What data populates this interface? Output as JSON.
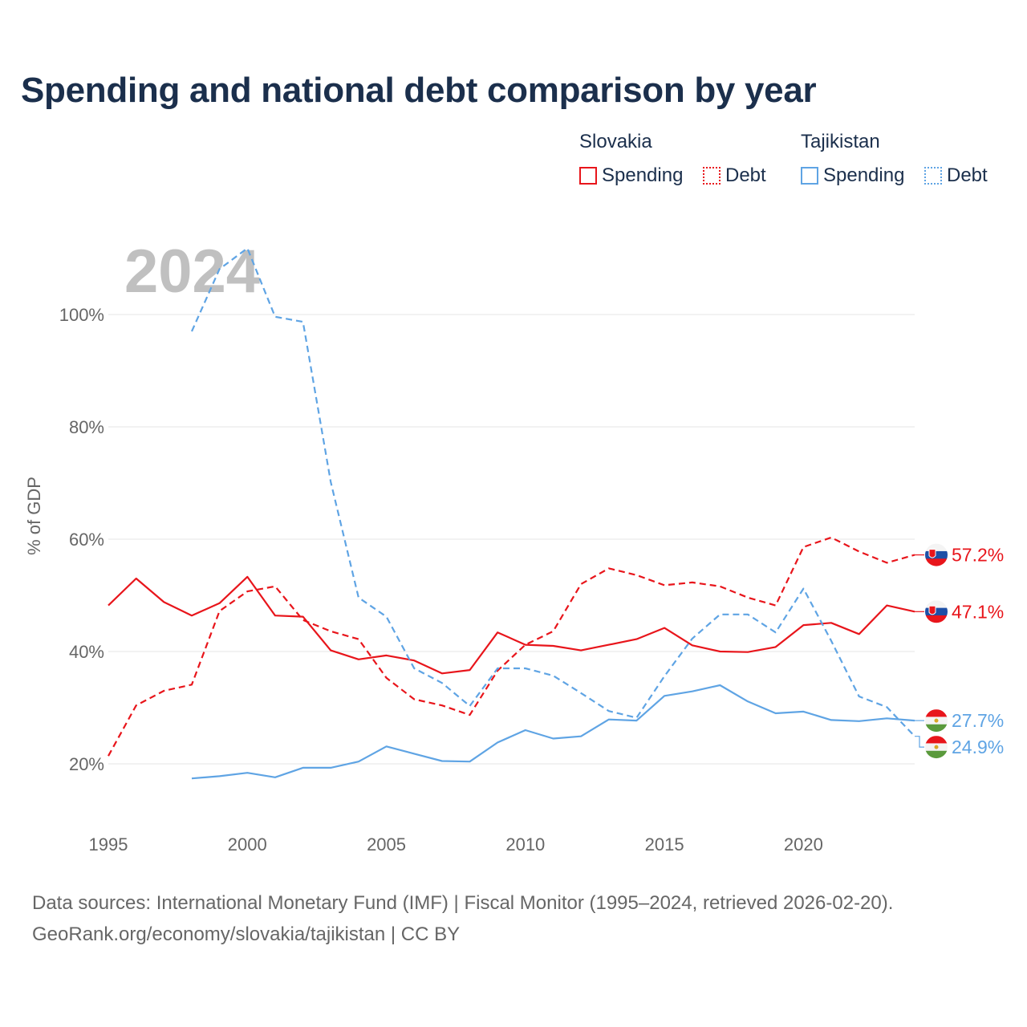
{
  "title": "Spending and national debt comparison by year",
  "legend": {
    "groups": [
      {
        "name": "Slovakia",
        "spending_label": "Spending",
        "debt_label": "Debt"
      },
      {
        "name": "Tajikistan",
        "spending_label": "Spending",
        "debt_label": "Debt"
      }
    ]
  },
  "source": {
    "line1": "Data sources: International Monetary Fund (IMF) | Fiscal Monitor (1995–2024, retrieved 2026-02-20).",
    "line2": "GeoRank.org/economy/slovakia/tajikistan | CC BY"
  },
  "colors": {
    "slovakia": "#e8151b",
    "tajikistan": "#5fa4e4",
    "title": "#1b2f4c",
    "year_watermark": "#c0c0c0"
  },
  "chart_data": {
    "type": "line",
    "title": "Spending and national debt comparison by year",
    "ylabel": "% of GDP",
    "xlabel": "",
    "year_label": "2024",
    "xlim": [
      1995,
      2024
    ],
    "ylim": [
      10,
      113
    ],
    "x_ticks": [
      1995,
      2000,
      2005,
      2010,
      2015,
      2020
    ],
    "y_ticks": [
      20,
      40,
      60,
      80,
      100
    ],
    "y_tick_labels": [
      "20%",
      "40%",
      "60%",
      "80%",
      "100%"
    ],
    "grid": true,
    "series": [
      {
        "name": "Slovakia Spending",
        "country": "Slovakia",
        "style": "solid",
        "color": "#e8151b",
        "x": [
          1995,
          1996,
          1997,
          1998,
          1999,
          2000,
          2001,
          2002,
          2003,
          2004,
          2005,
          2006,
          2007,
          2008,
          2009,
          2010,
          2011,
          2012,
          2013,
          2014,
          2015,
          2016,
          2017,
          2018,
          2019,
          2020,
          2021,
          2022,
          2023,
          2024
        ],
        "values": [
          48.2,
          53.0,
          48.8,
          46.4,
          48.6,
          53.3,
          46.4,
          46.2,
          40.2,
          38.6,
          39.3,
          38.4,
          36.1,
          36.7,
          43.4,
          41.2,
          41.0,
          40.2,
          41.2,
          42.2,
          44.2,
          41.1,
          40.0,
          39.9,
          40.8,
          44.7,
          45.1,
          43.1,
          48.2,
          47.1
        ],
        "end_label": "47.1%"
      },
      {
        "name": "Slovakia Debt",
        "country": "Slovakia",
        "style": "dashed",
        "color": "#e8151b",
        "x": [
          1995,
          1996,
          1997,
          1998,
          1999,
          2000,
          2001,
          2002,
          2003,
          2004,
          2005,
          2006,
          2007,
          2008,
          2009,
          2010,
          2011,
          2012,
          2013,
          2014,
          2015,
          2016,
          2017,
          2018,
          2019,
          2020,
          2021,
          2022,
          2023,
          2024
        ],
        "values": [
          21.4,
          30.4,
          33.0,
          34.1,
          47.2,
          50.7,
          51.6,
          45.6,
          43.6,
          42.2,
          35.3,
          31.5,
          30.4,
          28.7,
          36.6,
          41.2,
          43.6,
          52.0,
          54.8,
          53.6,
          51.8,
          52.3,
          51.6,
          49.6,
          48.2,
          58.6,
          60.3,
          57.8,
          55.8,
          57.2
        ],
        "end_label": "57.2%"
      },
      {
        "name": "Tajikistan Spending",
        "country": "Tajikistan",
        "style": "solid",
        "color": "#5fa4e4",
        "x": [
          1998,
          1999,
          2000,
          2001,
          2002,
          2003,
          2004,
          2005,
          2006,
          2007,
          2008,
          2009,
          2010,
          2011,
          2012,
          2013,
          2014,
          2015,
          2016,
          2017,
          2018,
          2019,
          2020,
          2021,
          2022,
          2023,
          2024
        ],
        "values": [
          17.4,
          17.8,
          18.4,
          17.6,
          19.3,
          19.3,
          20.4,
          23.1,
          21.8,
          20.5,
          20.4,
          23.8,
          26.0,
          24.5,
          24.9,
          27.9,
          27.7,
          32.1,
          32.9,
          34.0,
          31.1,
          29.0,
          29.3,
          27.8,
          27.6,
          28.1,
          27.7
        ],
        "end_label": "27.7%"
      },
      {
        "name": "Tajikistan Debt",
        "country": "Tajikistan",
        "style": "dashed",
        "color": "#5fa4e4",
        "x": [
          1998,
          1999,
          2000,
          2001,
          2002,
          2003,
          2004,
          2005,
          2006,
          2007,
          2008,
          2009,
          2010,
          2011,
          2012,
          2013,
          2014,
          2015,
          2016,
          2017,
          2018,
          2019,
          2020,
          2021,
          2022,
          2023,
          2024
        ],
        "values": [
          97.0,
          108.1,
          111.8,
          99.6,
          98.7,
          70.2,
          49.6,
          46.2,
          37.0,
          34.4,
          30.3,
          37.0,
          37.0,
          35.7,
          32.6,
          29.4,
          28.2,
          35.6,
          42.3,
          46.6,
          46.6,
          43.4,
          51.2,
          41.9,
          32.0,
          30.1,
          24.9
        ],
        "end_label": "24.9%"
      }
    ]
  }
}
